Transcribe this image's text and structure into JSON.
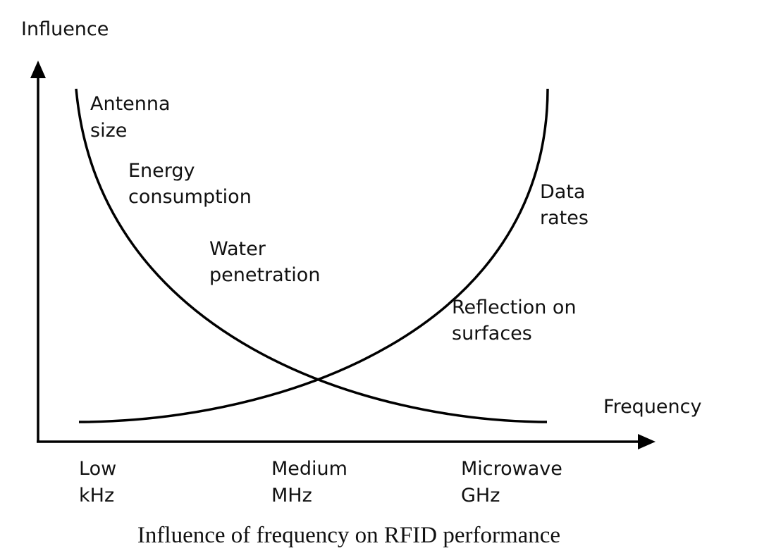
{
  "axes": {
    "y_label": "Influence",
    "x_label": "Frequency"
  },
  "curves": {
    "decreasing": {
      "labels": [
        [
          "Antenna",
          "size"
        ],
        [
          "Energy",
          "consumption"
        ],
        [
          "Water",
          "penetration"
        ]
      ]
    },
    "increasing": {
      "labels": [
        [
          "Data",
          "rates"
        ],
        [
          "Reflection on",
          "surfaces"
        ]
      ]
    }
  },
  "frequency_bands": [
    [
      "Low",
      "kHz"
    ],
    [
      "Medium",
      "MHz"
    ],
    [
      "Microwave",
      "GHz"
    ]
  ],
  "caption": "Influence of frequency on RFID performance",
  "colors": {
    "line": "#000000",
    "text": "#111111",
    "background": "#ffffff"
  }
}
